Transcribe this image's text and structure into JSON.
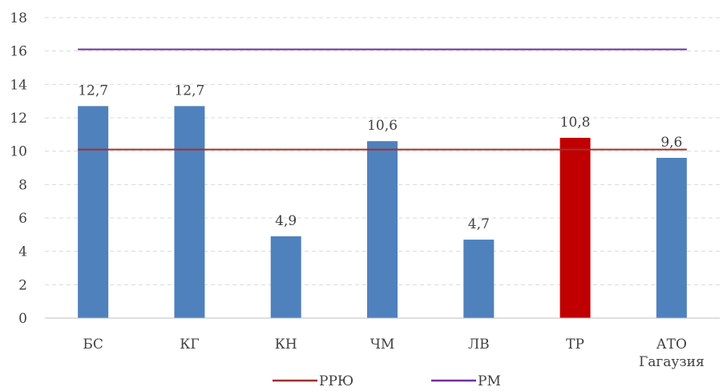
{
  "chart_data": {
    "type": "bar",
    "categories": [
      [
        "БС"
      ],
      [
        "КГ"
      ],
      [
        "КН"
      ],
      [
        "ЧМ"
      ],
      [
        "ЛВ"
      ],
      [
        "ТР"
      ],
      [
        "АТО",
        "Гагаузия"
      ]
    ],
    "values": [
      12.7,
      12.7,
      4.9,
      10.6,
      4.7,
      10.8,
      9.6
    ],
    "value_labels": [
      "12,7",
      "12,7",
      "4,9",
      "10,6",
      "4,7",
      "10,8",
      "9,6"
    ],
    "bar_colors": [
      "#4f81bd",
      "#4f81bd",
      "#4f81bd",
      "#4f81bd",
      "#4f81bd",
      "#c00000",
      "#4f81bd"
    ],
    "ylim": [
      0,
      18
    ],
    "yticks": [
      0,
      2,
      4,
      6,
      8,
      10,
      12,
      14,
      16,
      18
    ],
    "grid": true,
    "reference_lines": [
      {
        "name": "РРЮ",
        "value": 10.1,
        "color": "#a0302e"
      },
      {
        "name": "РМ",
        "value": 16.1,
        "color": "#7030a0"
      }
    ],
    "legend_position": "bottom",
    "title": "",
    "xlabel": "",
    "ylabel": ""
  }
}
